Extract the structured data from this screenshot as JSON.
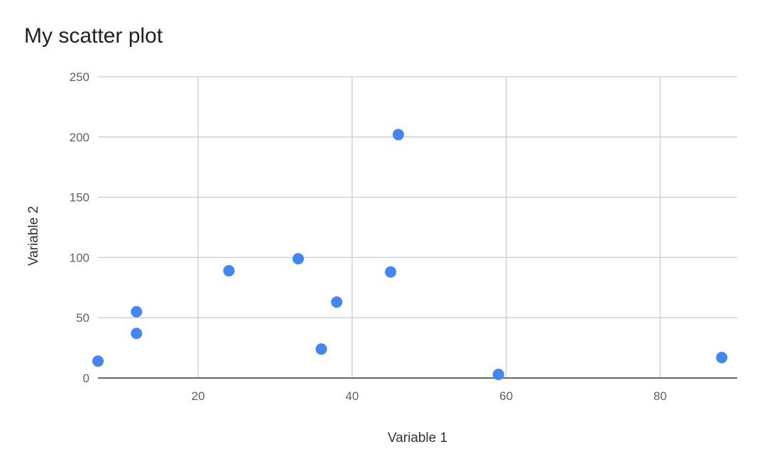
{
  "chart_data": {
    "type": "scatter",
    "title": "My scatter plot",
    "xlabel": "Variable 1",
    "ylabel": "Variable 2",
    "xlim": [
      7,
      90
    ],
    "ylim": [
      0,
      250
    ],
    "x_ticks": [
      20,
      40,
      60,
      80
    ],
    "y_ticks": [
      0,
      50,
      100,
      150,
      200,
      250
    ],
    "grid": true,
    "legend": "none",
    "points": [
      {
        "x": 7,
        "y": 14
      },
      {
        "x": 12,
        "y": 37
      },
      {
        "x": 12,
        "y": 55
      },
      {
        "x": 24,
        "y": 89
      },
      {
        "x": 33,
        "y": 99
      },
      {
        "x": 36,
        "y": 24
      },
      {
        "x": 38,
        "y": 63
      },
      {
        "x": 45,
        "y": 88
      },
      {
        "x": 46,
        "y": 202
      },
      {
        "x": 59,
        "y": 3
      },
      {
        "x": 88,
        "y": 17
      }
    ],
    "colors": {
      "point": "#4285f4",
      "grid": "#cccccc",
      "axis": "#333333"
    }
  }
}
